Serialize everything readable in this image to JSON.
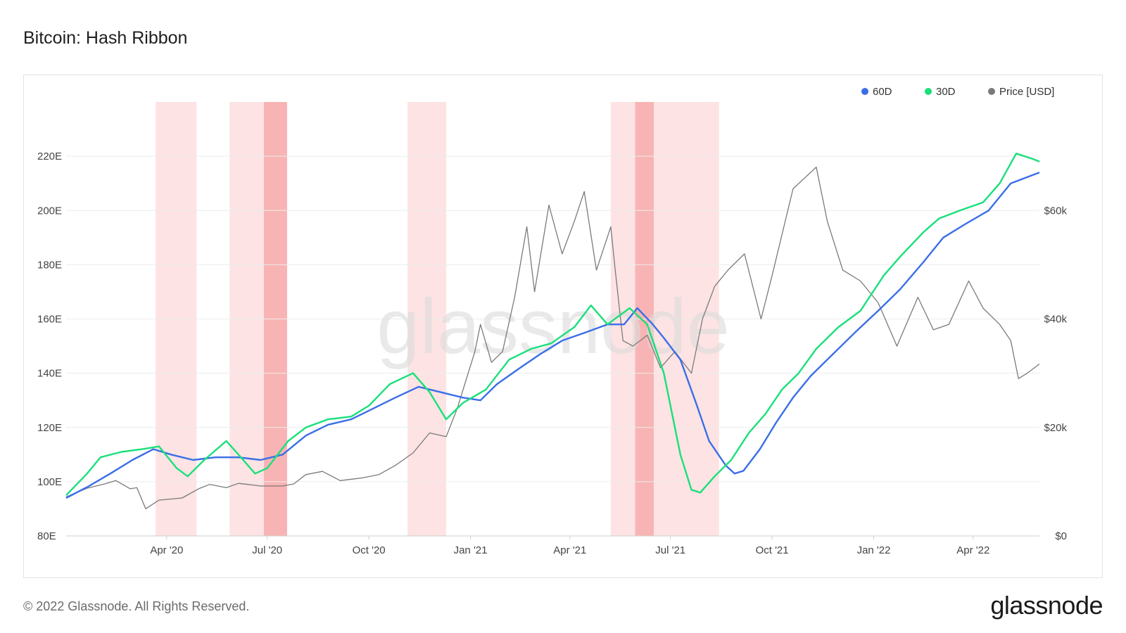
{
  "header": {
    "title": "Bitcoin: Hash Ribbon"
  },
  "footer": {
    "copyright": "© 2022 Glassnode. All Rights Reserved.",
    "brand": "glassnode"
  },
  "watermark": "glassnode",
  "colors": {
    "ma60": "#3a6ee8",
    "ma30": "#19e07a",
    "price": "#7a7a7a",
    "capitulation_light": "#fde3e3",
    "capitulation_dark": "#f8b4b4",
    "grid": "#ececec"
  },
  "chart_data": {
    "type": "line",
    "legend": {
      "placement": "top-right",
      "items": [
        {
          "key": "ma60",
          "label": "60D",
          "color": "#3a6ee8"
        },
        {
          "key": "ma30",
          "label": "30D",
          "color": "#19e07a"
        },
        {
          "key": "price",
          "label": "Price [USD]",
          "color": "#7a7a7a"
        }
      ]
    },
    "x_range": [
      "2020-01-01",
      "2022-05-31"
    ],
    "x_ticks": [
      {
        "date": "2020-04-01",
        "label": "Apr '20"
      },
      {
        "date": "2020-07-01",
        "label": "Jul '20"
      },
      {
        "date": "2020-10-01",
        "label": "Oct '20"
      },
      {
        "date": "2021-01-01",
        "label": "Jan '21"
      },
      {
        "date": "2021-04-01",
        "label": "Apr '21"
      },
      {
        "date": "2021-07-01",
        "label": "Jul '21"
      },
      {
        "date": "2021-10-01",
        "label": "Oct '21"
      },
      {
        "date": "2022-01-01",
        "label": "Jan '22"
      },
      {
        "date": "2022-04-01",
        "label": "Apr '22"
      }
    ],
    "y_left": {
      "unit": "E",
      "range": [
        80,
        240
      ],
      "ticks": [
        {
          "value": 80,
          "label": "80E"
        },
        {
          "value": 100,
          "label": "100E"
        },
        {
          "value": 120,
          "label": "120E"
        },
        {
          "value": 140,
          "label": "140E"
        },
        {
          "value": 160,
          "label": "160E"
        },
        {
          "value": 180,
          "label": "180E"
        },
        {
          "value": 200,
          "label": "200E"
        },
        {
          "value": 220,
          "label": "220E"
        }
      ]
    },
    "y_right": {
      "unit": "USD",
      "range": [
        0,
        80000
      ],
      "ticks": [
        {
          "value": 0,
          "label": "$0"
        },
        {
          "value": 20000,
          "label": "$20k"
        },
        {
          "value": 40000,
          "label": "$40k"
        },
        {
          "value": 60000,
          "label": "$60k"
        }
      ]
    },
    "grid": true,
    "capitulation_bands": [
      {
        "start": "2020-03-22",
        "end": "2020-04-28",
        "level": "light"
      },
      {
        "start": "2020-05-28",
        "end": "2020-06-28",
        "level": "light"
      },
      {
        "start": "2020-06-28",
        "end": "2020-07-19",
        "level": "dark"
      },
      {
        "start": "2020-11-05",
        "end": "2020-12-10",
        "level": "light"
      },
      {
        "start": "2021-05-08",
        "end": "2021-05-30",
        "level": "light"
      },
      {
        "start": "2021-05-30",
        "end": "2021-06-16",
        "level": "dark"
      },
      {
        "start": "2021-06-16",
        "end": "2021-08-14",
        "level": "light"
      }
    ],
    "series": [
      {
        "name": "60D",
        "key": "ma60",
        "axis": "left",
        "points": [
          [
            "2020-01-01",
            94
          ],
          [
            "2020-01-20",
            98
          ],
          [
            "2020-02-10",
            103
          ],
          [
            "2020-03-01",
            108
          ],
          [
            "2020-03-20",
            112
          ],
          [
            "2020-04-05",
            110
          ],
          [
            "2020-04-25",
            108
          ],
          [
            "2020-05-15",
            109
          ],
          [
            "2020-06-05",
            109
          ],
          [
            "2020-06-25",
            108
          ],
          [
            "2020-07-15",
            110
          ],
          [
            "2020-08-05",
            117
          ],
          [
            "2020-08-25",
            121
          ],
          [
            "2020-09-15",
            123
          ],
          [
            "2020-10-05",
            127
          ],
          [
            "2020-10-25",
            131
          ],
          [
            "2020-11-15",
            135
          ],
          [
            "2020-11-25",
            134
          ],
          [
            "2020-12-05",
            133
          ],
          [
            "2020-12-25",
            131
          ],
          [
            "2021-01-10",
            130
          ],
          [
            "2021-01-25",
            136
          ],
          [
            "2021-02-15",
            142
          ],
          [
            "2021-03-05",
            147
          ],
          [
            "2021-03-25",
            152
          ],
          [
            "2021-04-15",
            155
          ],
          [
            "2021-05-05",
            158
          ],
          [
            "2021-05-20",
            158
          ],
          [
            "2021-06-01",
            164
          ],
          [
            "2021-06-15",
            158
          ],
          [
            "2021-06-25",
            153
          ],
          [
            "2021-07-10",
            145
          ],
          [
            "2021-07-25",
            128
          ],
          [
            "2021-08-05",
            115
          ],
          [
            "2021-08-20",
            106
          ],
          [
            "2021-08-28",
            103
          ],
          [
            "2021-09-05",
            104
          ],
          [
            "2021-09-20",
            112
          ],
          [
            "2021-10-05",
            122
          ],
          [
            "2021-10-20",
            131
          ],
          [
            "2021-11-05",
            139
          ],
          [
            "2021-11-25",
            147
          ],
          [
            "2021-12-15",
            155
          ],
          [
            "2022-01-05",
            163
          ],
          [
            "2022-01-25",
            171
          ],
          [
            "2022-02-15",
            181
          ],
          [
            "2022-03-05",
            190
          ],
          [
            "2022-03-25",
            195
          ],
          [
            "2022-04-15",
            200
          ],
          [
            "2022-05-05",
            210
          ],
          [
            "2022-05-31",
            214
          ]
        ]
      },
      {
        "name": "30D",
        "key": "ma30",
        "axis": "left",
        "points": [
          [
            "2020-01-01",
            95
          ],
          [
            "2020-01-20",
            103
          ],
          [
            "2020-02-01",
            109
          ],
          [
            "2020-02-20",
            111
          ],
          [
            "2020-03-10",
            112
          ],
          [
            "2020-03-25",
            113
          ],
          [
            "2020-04-10",
            105
          ],
          [
            "2020-04-20",
            102
          ],
          [
            "2020-05-05",
            108
          ],
          [
            "2020-05-25",
            115
          ],
          [
            "2020-06-05",
            110
          ],
          [
            "2020-06-20",
            103
          ],
          [
            "2020-07-01",
            105
          ],
          [
            "2020-07-20",
            115
          ],
          [
            "2020-08-05",
            120
          ],
          [
            "2020-08-25",
            123
          ],
          [
            "2020-09-15",
            124
          ],
          [
            "2020-10-01",
            128
          ],
          [
            "2020-10-20",
            136
          ],
          [
            "2020-11-10",
            140
          ],
          [
            "2020-11-25",
            133
          ],
          [
            "2020-12-10",
            123
          ],
          [
            "2020-12-25",
            129
          ],
          [
            "2021-01-15",
            134
          ],
          [
            "2021-02-05",
            145
          ],
          [
            "2021-02-25",
            149
          ],
          [
            "2021-03-15",
            151
          ],
          [
            "2021-04-05",
            157
          ],
          [
            "2021-04-20",
            165
          ],
          [
            "2021-05-05",
            158
          ],
          [
            "2021-05-25",
            164
          ],
          [
            "2021-06-10",
            158
          ],
          [
            "2021-06-25",
            140
          ],
          [
            "2021-07-10",
            110
          ],
          [
            "2021-07-20",
            97
          ],
          [
            "2021-07-28",
            96
          ],
          [
            "2021-08-10",
            102
          ],
          [
            "2021-08-25",
            108
          ],
          [
            "2021-09-10",
            118
          ],
          [
            "2021-09-25",
            125
          ],
          [
            "2021-10-10",
            134
          ],
          [
            "2021-10-25",
            140
          ],
          [
            "2021-11-10",
            149
          ],
          [
            "2021-11-30",
            157
          ],
          [
            "2021-12-20",
            163
          ],
          [
            "2022-01-10",
            176
          ],
          [
            "2022-01-25",
            183
          ],
          [
            "2022-02-15",
            192
          ],
          [
            "2022-03-01",
            197
          ],
          [
            "2022-03-20",
            200
          ],
          [
            "2022-04-10",
            203
          ],
          [
            "2022-04-25",
            210
          ],
          [
            "2022-05-10",
            221
          ],
          [
            "2022-05-25",
            219
          ],
          [
            "2022-05-31",
            218
          ]
        ]
      },
      {
        "name": "Price [USD]",
        "key": "price",
        "axis": "right",
        "points": [
          [
            "2020-01-01",
            7200
          ],
          [
            "2020-01-20",
            8800
          ],
          [
            "2020-02-05",
            9600
          ],
          [
            "2020-02-15",
            10200
          ],
          [
            "2020-02-28",
            8700
          ],
          [
            "2020-03-05",
            8900
          ],
          [
            "2020-03-13",
            5000
          ],
          [
            "2020-03-25",
            6600
          ],
          [
            "2020-04-15",
            7000
          ],
          [
            "2020-04-30",
            8700
          ],
          [
            "2020-05-10",
            9500
          ],
          [
            "2020-05-25",
            8900
          ],
          [
            "2020-06-05",
            9700
          ],
          [
            "2020-06-25",
            9200
          ],
          [
            "2020-07-15",
            9200
          ],
          [
            "2020-07-25",
            9600
          ],
          [
            "2020-08-05",
            11300
          ],
          [
            "2020-08-20",
            11900
          ],
          [
            "2020-09-05",
            10200
          ],
          [
            "2020-09-25",
            10700
          ],
          [
            "2020-10-10",
            11300
          ],
          [
            "2020-10-25",
            13000
          ],
          [
            "2020-11-10",
            15300
          ],
          [
            "2020-11-25",
            19000
          ],
          [
            "2020-12-10",
            18300
          ],
          [
            "2020-12-20",
            23500
          ],
          [
            "2021-01-05",
            34000
          ],
          [
            "2021-01-10",
            39000
          ],
          [
            "2021-01-20",
            32000
          ],
          [
            "2021-01-30",
            34000
          ],
          [
            "2021-02-10",
            44000
          ],
          [
            "2021-02-21",
            57000
          ],
          [
            "2021-02-28",
            45000
          ],
          [
            "2021-03-13",
            61000
          ],
          [
            "2021-03-25",
            52000
          ],
          [
            "2021-04-05",
            58000
          ],
          [
            "2021-04-14",
            63500
          ],
          [
            "2021-04-25",
            49000
          ],
          [
            "2021-05-08",
            57000
          ],
          [
            "2021-05-12",
            49000
          ],
          [
            "2021-05-19",
            36000
          ],
          [
            "2021-05-28",
            35000
          ],
          [
            "2021-06-10",
            37000
          ],
          [
            "2021-06-22",
            31000
          ],
          [
            "2021-07-05",
            34000
          ],
          [
            "2021-07-20",
            30000
          ],
          [
            "2021-07-30",
            40000
          ],
          [
            "2021-08-10",
            46000
          ],
          [
            "2021-08-22",
            49000
          ],
          [
            "2021-09-06",
            52000
          ],
          [
            "2021-09-21",
            40000
          ],
          [
            "2021-10-01",
            48000
          ],
          [
            "2021-10-20",
            64000
          ],
          [
            "2021-11-10",
            68000
          ],
          [
            "2021-11-20",
            58000
          ],
          [
            "2021-12-04",
            49000
          ],
          [
            "2021-12-20",
            47000
          ],
          [
            "2022-01-05",
            43000
          ],
          [
            "2022-01-22",
            35000
          ],
          [
            "2022-02-10",
            44000
          ],
          [
            "2022-02-24",
            38000
          ],
          [
            "2022-03-10",
            39000
          ],
          [
            "2022-03-28",
            47000
          ],
          [
            "2022-04-10",
            42000
          ],
          [
            "2022-04-25",
            39000
          ],
          [
            "2022-05-05",
            36000
          ],
          [
            "2022-05-12",
            29000
          ],
          [
            "2022-05-20",
            30000
          ],
          [
            "2022-05-31",
            31700
          ]
        ]
      }
    ]
  }
}
